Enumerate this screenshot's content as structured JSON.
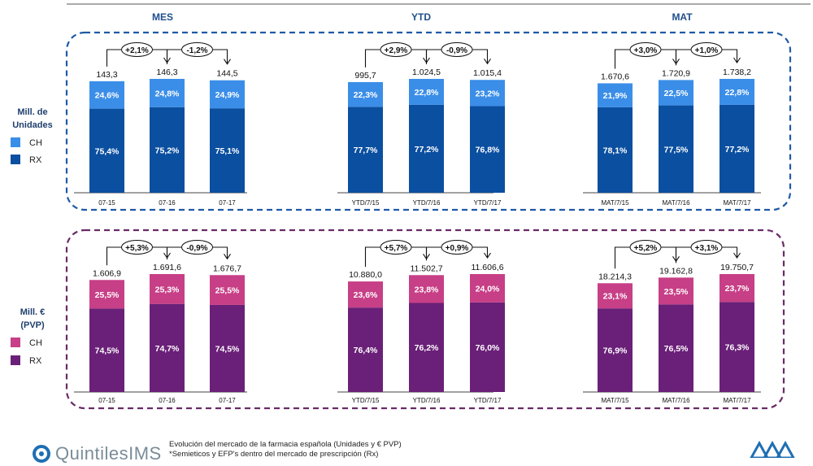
{
  "colors": {
    "units_ch": "#3b8ee8",
    "units_rx": "#0b4fa0",
    "units_border": "#1f5aa6",
    "value_ch": "#c73f86",
    "value_rx": "#6a2078",
    "value_border": "#6a2a66",
    "header_text": "#1f4e8c"
  },
  "headers": [
    "MES",
    "YTD",
    "MAT"
  ],
  "panels": {
    "units": {
      "title_line1": "Mill. de",
      "title_line2": "Unidades",
      "legend": [
        {
          "label": "CH",
          "color": "#3b8ee8"
        },
        {
          "label": "RX",
          "color": "#0b4fa0"
        }
      ]
    },
    "value": {
      "title_line1": "Mill. €",
      "title_line2": "(PVP)",
      "legend": [
        {
          "label": "CH",
          "color": "#c73f86"
        },
        {
          "label": "RX",
          "color": "#6a2078"
        }
      ]
    }
  },
  "footer": {
    "logo_text": "QuintilesIMS",
    "line1": "Evolución del mercado de la farmacia española (Unidades y € PVP)",
    "line2": "*Semieticos y EFP's dentro del mercado de prescripción (Rx)"
  },
  "chart_data": [
    {
      "type": "bar",
      "panel": "units",
      "group": "MES",
      "categories": [
        "07-15",
        "07-16",
        "07-17"
      ],
      "totals": [
        "143,3",
        "146,3",
        "144,5"
      ],
      "series": [
        {
          "name": "RX",
          "values": [
            75.4,
            75.2,
            75.1
          ],
          "labels": [
            "75,4%",
            "75,2%",
            "75,1%"
          ]
        },
        {
          "name": "CH",
          "values": [
            24.6,
            24.8,
            24.9
          ],
          "labels": [
            "24,6%",
            "24,8%",
            "24,9%"
          ]
        }
      ],
      "growth": [
        "+2,1%",
        "-1,2%"
      ]
    },
    {
      "type": "bar",
      "panel": "units",
      "group": "YTD",
      "categories": [
        "YTD/7/15",
        "YTD/7/16",
        "YTD/7/17"
      ],
      "totals": [
        "995,7",
        "1.024,5",
        "1.015,4"
      ],
      "series": [
        {
          "name": "RX",
          "values": [
            77.7,
            77.2,
            76.8
          ],
          "labels": [
            "77,7%",
            "77,2%",
            "76,8%"
          ]
        },
        {
          "name": "CH",
          "values": [
            22.3,
            22.8,
            23.2
          ],
          "labels": [
            "22,3%",
            "22,8%",
            "23,2%"
          ]
        }
      ],
      "growth": [
        "+2,9%",
        "-0,9%"
      ]
    },
    {
      "type": "bar",
      "panel": "units",
      "group": "MAT",
      "categories": [
        "MAT/7/15",
        "MAT/7/16",
        "MAT/7/17"
      ],
      "totals": [
        "1.670,6",
        "1.720,9",
        "1.738,2"
      ],
      "series": [
        {
          "name": "RX",
          "values": [
            78.1,
            77.5,
            77.2
          ],
          "labels": [
            "78,1%",
            "77,5%",
            "77,2%"
          ]
        },
        {
          "name": "CH",
          "values": [
            21.9,
            22.5,
            22.8
          ],
          "labels": [
            "21,9%",
            "22,5%",
            "22,8%"
          ]
        }
      ],
      "growth": [
        "+3,0%",
        "+1,0%"
      ]
    },
    {
      "type": "bar",
      "panel": "value",
      "group": "MES",
      "categories": [
        "07-15",
        "07-16",
        "07-17"
      ],
      "totals": [
        "1.606,9",
        "1.691,6",
        "1.676,7"
      ],
      "series": [
        {
          "name": "RX",
          "values": [
            74.5,
            74.7,
            74.5
          ],
          "labels": [
            "74,5%",
            "74,7%",
            "74,5%"
          ]
        },
        {
          "name": "CH",
          "values": [
            25.5,
            25.3,
            25.5
          ],
          "labels": [
            "25,5%",
            "25,3%",
            "25,5%"
          ]
        }
      ],
      "growth": [
        "+5,3%",
        "-0,9%"
      ]
    },
    {
      "type": "bar",
      "panel": "value",
      "group": "YTD",
      "categories": [
        "YTD/7/15",
        "YTD/7/16",
        "YTD/7/17"
      ],
      "totals": [
        "10.880,0",
        "11.502,7",
        "11.606,6"
      ],
      "series": [
        {
          "name": "RX",
          "values": [
            76.4,
            76.2,
            76.0
          ],
          "labels": [
            "76,4%",
            "76,2%",
            "76,0%"
          ]
        },
        {
          "name": "CH",
          "values": [
            23.6,
            23.8,
            24.0
          ],
          "labels": [
            "23,6%",
            "23,8%",
            "24,0%"
          ]
        }
      ],
      "growth": [
        "+5,7%",
        "+0,9%"
      ]
    },
    {
      "type": "bar",
      "panel": "value",
      "group": "MAT",
      "categories": [
        "MAT/7/15",
        "MAT/7/16",
        "MAT/7/17"
      ],
      "totals": [
        "18.214,3",
        "19.162,8",
        "19.750,7"
      ],
      "series": [
        {
          "name": "RX",
          "values": [
            76.9,
            76.5,
            76.3
          ],
          "labels": [
            "76,9%",
            "76,5%",
            "76,3%"
          ]
        },
        {
          "name": "CH",
          "values": [
            23.1,
            23.5,
            23.7
          ],
          "labels": [
            "23,1%",
            "23,5%",
            "23,7%"
          ]
        }
      ],
      "growth": [
        "+5,2%",
        "+3,1%"
      ]
    }
  ]
}
